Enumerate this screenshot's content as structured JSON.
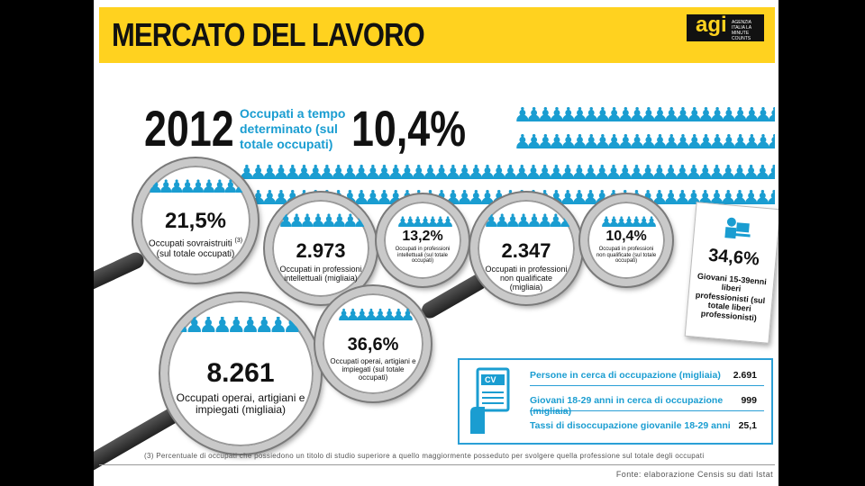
{
  "header": {
    "title": "MERCATO DEL LAVORO",
    "logo": "agi",
    "logo_sub": "AGENZIA ITALIA LA MINUTE COUNTS"
  },
  "top": {
    "year": "2012",
    "label": "Occupati a tempo determinato (sul totale occupati)",
    "value": "10,4%"
  },
  "lenses": {
    "sovraistruiti": {
      "value": "21,5%",
      "label": "Occupati sovraistruiti",
      "note": "(3)",
      "label2": "(sul totale occupati)"
    },
    "intellettuali": {
      "value": "2.973",
      "label": "Occupati in professioni intellettuali (migliaia)"
    },
    "intellettuali_pct": {
      "value": "13,2%",
      "label": "Occupati in professioni intellettuali (sul totale occupati)"
    },
    "non_qualificate": {
      "value": "2.347",
      "label": "Occupati in professioni non qualificate (migliaia)"
    },
    "non_qualificate_pct": {
      "value": "10,4%",
      "label": "Occupati in professioni non qualificate (sul totale occupati)"
    },
    "operai": {
      "value": "8.261",
      "label": "Occupati operai, artigiani e impiegati (migliaia)"
    },
    "operai_pct": {
      "value": "36,6%",
      "label": "Occupati operai, artigiani e impiegati (sul totale occupati)"
    }
  },
  "card": {
    "value": "34,6%",
    "label": "Giovani 15-39enni liberi professionisti (sul totale liberi professionisti)"
  },
  "infobox": {
    "cv_label": "CV",
    "rows": [
      {
        "label": "Persone in cerca di occupazione (migliaia)",
        "value": "2.691"
      },
      {
        "label": "Giovani 18-29 anni in cerca di occupazione (migliaia)",
        "value": "999"
      },
      {
        "label": "Tassi di disoccupazione giovanile 18-29 anni",
        "value": "25,1"
      }
    ]
  },
  "footnote": "(3) Percentuale di occupati che possiedono un titolo di studio superiore a quello maggiormente posseduto per svolgere quella professione sul totale degli occupati",
  "source": "Fonte: elaborazione Censis su dati Istat",
  "people_glyph": "👤",
  "colors": {
    "accent": "#1a9dd1",
    "banner": "#ffd21f"
  }
}
